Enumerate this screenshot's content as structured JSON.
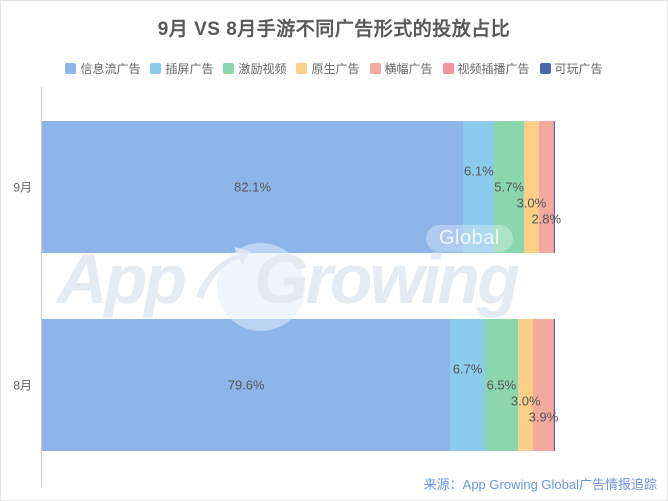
{
  "title": "9月 VS 8月手游不同广告形式的投放占比",
  "chart_data": {
    "type": "bar",
    "orientation": "horizontal",
    "stacked": true,
    "unit": "%",
    "title": "9月 VS 8月手游不同广告形式的投放占比",
    "categories": [
      "9月",
      "8月"
    ],
    "segments": [
      "信息流广告",
      "插屏广告",
      "激励视频",
      "原生广告",
      "横幅广告",
      "视频插播广告",
      "可玩广告"
    ],
    "segment_colors": [
      "#8EB5E9",
      "#8CCBEB",
      "#8BD6AD",
      "#FCCF88",
      "#F2A9A0",
      "#F2939F",
      "#4D66AC"
    ],
    "legend_position": "top",
    "grid": false,
    "xlim": [
      0,
      100
    ],
    "series": [
      {
        "name": "9月",
        "values": [
          82.1,
          6.1,
          5.7,
          3.0,
          2.8,
          0.1,
          0.2
        ],
        "labels": [
          "82.1%",
          "6.1%",
          "5.7%",
          "3.0%",
          "2.8%",
          "",
          ""
        ]
      },
      {
        "name": "8月",
        "values": [
          79.6,
          6.7,
          6.5,
          3.0,
          3.9,
          0.1,
          0.2
        ],
        "labels": [
          "79.6%",
          "6.7%",
          "6.5%",
          "3.0%",
          "3.9%",
          "",
          ""
        ]
      }
    ]
  },
  "watermark": {
    "brand_app": "App",
    "brand_growing": "Growing",
    "badge": "Global"
  },
  "source": "来源：App Growing Global广告情报追踪",
  "colors": {
    "title_text": "#595959",
    "legend_text": "#666666",
    "value_label_text": "#555555",
    "axis_line": "#cccccc",
    "source_text": "#6b94de"
  }
}
